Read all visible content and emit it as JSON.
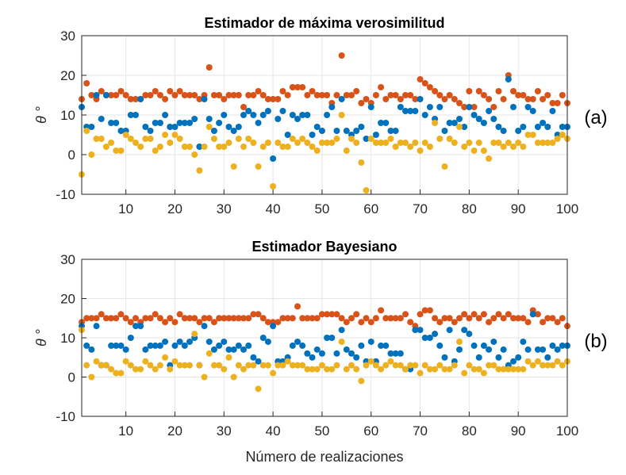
{
  "chart_data": [
    {
      "type": "scatter",
      "title": "Estimador de máxima verosimilitud",
      "ylabel": "θ °",
      "xlabel": "",
      "panel_label": "(a)",
      "xlim": [
        1,
        100
      ],
      "ylim": [
        -10,
        30
      ],
      "x_ticks": [
        10,
        20,
        30,
        40,
        50,
        60,
        70,
        80,
        90,
        100
      ],
      "y_ticks": [
        -10,
        0,
        10,
        20,
        30
      ],
      "grid": true,
      "x": [
        1,
        2,
        3,
        4,
        5,
        6,
        7,
        8,
        9,
        10,
        11,
        12,
        13,
        14,
        15,
        16,
        17,
        18,
        19,
        20,
        21,
        22,
        23,
        24,
        25,
        26,
        27,
        28,
        29,
        30,
        31,
        32,
        33,
        34,
        35,
        36,
        37,
        38,
        39,
        40,
        41,
        42,
        43,
        44,
        45,
        46,
        47,
        48,
        49,
        50,
        51,
        52,
        53,
        54,
        55,
        56,
        57,
        58,
        59,
        60,
        61,
        62,
        63,
        64,
        65,
        66,
        67,
        68,
        69,
        70,
        71,
        72,
        73,
        74,
        75,
        76,
        77,
        78,
        79,
        80,
        81,
        82,
        83,
        84,
        85,
        86,
        87,
        88,
        89,
        90,
        91,
        92,
        93,
        94,
        95,
        96,
        97,
        98,
        99,
        100
      ],
      "series": [
        {
          "color": "#D95319",
          "values": [
            14,
            18,
            15,
            14,
            16,
            15,
            15,
            15,
            16,
            15,
            14,
            14,
            14,
            15,
            15,
            16,
            15,
            14,
            16,
            15,
            16,
            15,
            15,
            15,
            14,
            15,
            22,
            15,
            15,
            14,
            15,
            15,
            15,
            12,
            15,
            15,
            16,
            15,
            14,
            14,
            14,
            16,
            15,
            17,
            17,
            17,
            15,
            16,
            15,
            15,
            15,
            13,
            15,
            25,
            15,
            15,
            16,
            13,
            14,
            13,
            15,
            17,
            14,
            15,
            15,
            14,
            15,
            15,
            14,
            19,
            18,
            17,
            16,
            15,
            14,
            15,
            14,
            13,
            12,
            16,
            12,
            16,
            15,
            14,
            12,
            16,
            14,
            20,
            16,
            15,
            15,
            14,
            14,
            16,
            14,
            15,
            13,
            13,
            15,
            13
          ]
        },
        {
          "color": "#0072BD",
          "values": [
            12,
            7,
            7,
            15,
            9,
            15,
            8,
            8,
            6,
            6,
            10,
            10,
            14,
            7,
            6,
            8,
            8,
            10,
            7,
            7,
            8,
            8,
            8,
            9,
            2,
            14,
            9,
            6,
            8,
            10,
            7,
            6,
            7,
            10,
            11,
            10,
            8,
            10,
            11,
            -1,
            9,
            11,
            5,
            10,
            9,
            10,
            10,
            5,
            7,
            6,
            10,
            12,
            6,
            14,
            6,
            5,
            6,
            7,
            4,
            12,
            5,
            8,
            8,
            6,
            6,
            12,
            11,
            11,
            11,
            14,
            10,
            12,
            9,
            12,
            6,
            8,
            8,
            9,
            7,
            12,
            10,
            9,
            8,
            11,
            9,
            7,
            6,
            19,
            12,
            6,
            7,
            12,
            11,
            7,
            8,
            7,
            11,
            5,
            7,
            7
          ]
        },
        {
          "color": "#EDB120",
          "values": [
            -5,
            6,
            0,
            4,
            4,
            2,
            3,
            1,
            1,
            5,
            4,
            3,
            2,
            4,
            4,
            1,
            2,
            5,
            3,
            5,
            4,
            2,
            2,
            0,
            -4,
            2,
            7,
            4,
            2,
            2,
            3,
            -3,
            4,
            2,
            4,
            3,
            -3,
            2,
            3,
            -8,
            3,
            2,
            2,
            4,
            3,
            4,
            3,
            2,
            1,
            3,
            3,
            3,
            4,
            10,
            1,
            4,
            3,
            -2,
            -9,
            4,
            3,
            3,
            3,
            4,
            2,
            3,
            3,
            2,
            3,
            1,
            3,
            2,
            8,
            4,
            -3,
            4,
            3,
            7,
            2,
            3,
            1,
            3,
            1,
            -1,
            3,
            3,
            2,
            3,
            2,
            3,
            2,
            5,
            5,
            3,
            3,
            3,
            3,
            4,
            5,
            4
          ]
        }
      ]
    },
    {
      "type": "scatter",
      "title": "Estimador Bayesiano",
      "ylabel": "θ °",
      "xlabel": "Número de realizaciones",
      "panel_label": "(b)",
      "xlim": [
        1,
        100
      ],
      "ylim": [
        -10,
        30
      ],
      "x_ticks": [
        10,
        20,
        30,
        40,
        50,
        60,
        70,
        80,
        90,
        100
      ],
      "y_ticks": [
        -10,
        0,
        10,
        20,
        30
      ],
      "grid": true,
      "x": [
        1,
        2,
        3,
        4,
        5,
        6,
        7,
        8,
        9,
        10,
        11,
        12,
        13,
        14,
        15,
        16,
        17,
        18,
        19,
        20,
        21,
        22,
        23,
        24,
        25,
        26,
        27,
        28,
        29,
        30,
        31,
        32,
        33,
        34,
        35,
        36,
        37,
        38,
        39,
        40,
        41,
        42,
        43,
        44,
        45,
        46,
        47,
        48,
        49,
        50,
        51,
        52,
        53,
        54,
        55,
        56,
        57,
        58,
        59,
        60,
        61,
        62,
        63,
        64,
        65,
        66,
        67,
        68,
        69,
        70,
        71,
        72,
        73,
        74,
        75,
        76,
        77,
        78,
        79,
        80,
        81,
        82,
        83,
        84,
        85,
        86,
        87,
        88,
        89,
        90,
        91,
        92,
        93,
        94,
        95,
        96,
        97,
        98,
        99,
        100
      ],
      "series": [
        {
          "color": "#D95319",
          "values": [
            14,
            15,
            15,
            15,
            16,
            15,
            15,
            15,
            16,
            15,
            14,
            15,
            14,
            15,
            15,
            16,
            15,
            14,
            15,
            14,
            16,
            15,
            15,
            15,
            14,
            15,
            15,
            14,
            15,
            15,
            15,
            15,
            15,
            15,
            15,
            16,
            16,
            15,
            14,
            14,
            14,
            15,
            15,
            15,
            18,
            15,
            15,
            15,
            15,
            16,
            16,
            16,
            16,
            15,
            14,
            15,
            16,
            14,
            15,
            14,
            15,
            17,
            15,
            15,
            15,
            15,
            16,
            14,
            13,
            16,
            17,
            17,
            15,
            14,
            15,
            15,
            14,
            15,
            16,
            15,
            16,
            15,
            16,
            14,
            15,
            16,
            15,
            16,
            15,
            15,
            15,
            14,
            17,
            16,
            14,
            15,
            15,
            14,
            15,
            13
          ]
        },
        {
          "color": "#0072BD",
          "values": [
            13,
            8,
            7,
            13,
            3,
            3,
            8,
            8,
            8,
            7,
            10,
            13,
            13,
            7,
            8,
            8,
            8,
            9,
            3,
            8,
            9,
            8,
            9,
            10,
            3,
            13,
            9,
            7,
            8,
            9,
            7,
            7,
            8,
            7,
            8,
            5,
            4,
            10,
            9,
            13,
            4,
            4,
            5,
            8,
            9,
            8,
            6,
            5,
            7,
            6,
            10,
            10,
            6,
            12,
            7,
            6,
            5,
            8,
            4,
            9,
            4,
            8,
            8,
            6,
            6,
            6,
            2,
            2,
            12,
            12,
            10,
            10,
            11,
            8,
            5,
            12,
            4,
            7,
            12,
            11,
            8,
            5,
            8,
            7,
            9,
            5,
            7,
            3,
            4,
            5,
            9,
            7,
            16,
            7,
            7,
            5,
            8,
            7,
            8,
            8
          ]
        },
        {
          "color": "#EDB120",
          "values": [
            12,
            3,
            0,
            4,
            3,
            3,
            2,
            1,
            1,
            4,
            3,
            2,
            2,
            4,
            3,
            2,
            3,
            5,
            2,
            4,
            3,
            3,
            3,
            11,
            3,
            0,
            6,
            3,
            3,
            2,
            5,
            0,
            3,
            2,
            3,
            3,
            -3,
            3,
            3,
            1,
            3,
            3,
            4,
            3,
            3,
            3,
            2,
            2,
            2,
            3,
            2,
            2,
            3,
            9,
            2,
            3,
            2,
            -1,
            3,
            4,
            3,
            2,
            3,
            4,
            3,
            3,
            2,
            3,
            3,
            1,
            3,
            2,
            2,
            3,
            2,
            2,
            3,
            9,
            1,
            3,
            2,
            2,
            1,
            3,
            3,
            2,
            2,
            2,
            2,
            2,
            2,
            4,
            3,
            4,
            3,
            3,
            3,
            4,
            3,
            4
          ]
        }
      ]
    }
  ]
}
